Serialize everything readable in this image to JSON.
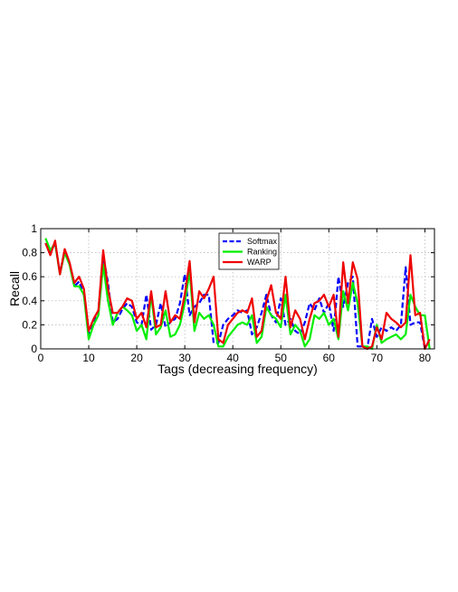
{
  "chart_data": {
    "type": "line",
    "title": "",
    "xlabel": "Tags (decreasing frequency)",
    "ylabel": "Recall",
    "xlim": [
      0,
      82
    ],
    "ylim": [
      0,
      1
    ],
    "xticks": [
      0,
      10,
      20,
      30,
      40,
      50,
      60,
      70,
      80
    ],
    "yticks": [
      0,
      0.2,
      0.4,
      0.6,
      0.8,
      1
    ],
    "xtick_labels": [
      "0",
      "10",
      "20",
      "30",
      "40",
      "50",
      "60",
      "70",
      "80"
    ],
    "ytick_labels": [
      "0",
      "0.2",
      "0.4",
      "0.6",
      "0.8",
      "1"
    ],
    "grid": true,
    "legend_position": "top-center",
    "series": [
      {
        "name": "Softmax",
        "color": "#0000ff",
        "style": "dashed",
        "x": [
          1,
          2,
          3,
          4,
          5,
          6,
          7,
          8,
          9,
          10,
          11,
          12,
          13,
          14,
          15,
          16,
          17,
          18,
          19,
          20,
          21,
          22,
          23,
          24,
          25,
          26,
          27,
          28,
          29,
          30,
          31,
          32,
          33,
          34,
          35,
          36,
          37,
          38,
          39,
          40,
          41,
          42,
          43,
          44,
          45,
          46,
          47,
          48,
          49,
          50,
          51,
          52,
          53,
          54,
          55,
          56,
          57,
          58,
          59,
          60,
          61,
          62,
          63,
          64,
          65,
          66,
          67,
          68,
          69,
          70,
          71,
          72,
          73,
          74,
          75,
          76,
          77,
          78,
          79,
          80,
          81
        ],
        "values": [
          0.88,
          0.8,
          0.88,
          0.63,
          0.82,
          0.72,
          0.52,
          0.56,
          0.45,
          0.12,
          0.23,
          0.3,
          0.78,
          0.55,
          0.22,
          0.25,
          0.33,
          0.38,
          0.35,
          0.22,
          0.2,
          0.45,
          0.16,
          0.2,
          0.38,
          0.18,
          0.22,
          0.25,
          0.38,
          0.62,
          0.28,
          0.35,
          0.38,
          0.45,
          0.45,
          0.05,
          0.05,
          0.2,
          0.25,
          0.28,
          0.32,
          0.3,
          0.32,
          0.12,
          0.18,
          0.3,
          0.45,
          0.28,
          0.22,
          0.42,
          0.2,
          0.25,
          0.15,
          0.12,
          0.22,
          0.38,
          0.32,
          0.42,
          0.3,
          0.38,
          0.15,
          0.6,
          0.35,
          0.55,
          0.6,
          0.02,
          0.02,
          0.0,
          0.25,
          0.1,
          0.18,
          0.15,
          0.18,
          0.15,
          0.2,
          0.68,
          0.2,
          0.22,
          0.22,
          0.0,
          0.08
        ]
      },
      {
        "name": "Ranking",
        "color": "#00ee00",
        "style": "solid",
        "x": [
          1,
          2,
          3,
          4,
          5,
          6,
          7,
          8,
          9,
          10,
          11,
          12,
          13,
          14,
          15,
          16,
          17,
          18,
          19,
          20,
          21,
          22,
          23,
          24,
          25,
          26,
          27,
          28,
          29,
          30,
          31,
          32,
          33,
          34,
          35,
          36,
          37,
          38,
          39,
          40,
          41,
          42,
          43,
          44,
          45,
          46,
          47,
          48,
          49,
          50,
          51,
          52,
          53,
          54,
          55,
          56,
          57,
          58,
          59,
          60,
          61,
          62,
          63,
          64,
          65,
          66,
          67,
          68,
          69,
          70,
          71,
          72,
          73,
          74,
          75,
          76,
          77,
          78,
          79,
          80,
          81
        ],
        "values": [
          0.92,
          0.82,
          0.88,
          0.62,
          0.8,
          0.7,
          0.52,
          0.52,
          0.45,
          0.08,
          0.2,
          0.28,
          0.7,
          0.4,
          0.2,
          0.3,
          0.35,
          0.32,
          0.28,
          0.15,
          0.2,
          0.08,
          0.45,
          0.12,
          0.18,
          0.32,
          0.1,
          0.12,
          0.2,
          0.38,
          0.65,
          0.15,
          0.3,
          0.25,
          0.28,
          0.2,
          0.02,
          0.02,
          0.1,
          0.15,
          0.2,
          0.22,
          0.2,
          0.28,
          0.05,
          0.1,
          0.35,
          0.28,
          0.25,
          0.18,
          0.45,
          0.12,
          0.2,
          0.15,
          0.02,
          0.08,
          0.28,
          0.25,
          0.3,
          0.2,
          0.25,
          0.08,
          0.48,
          0.32,
          0.55,
          0.38,
          0.02,
          0.02,
          0.0,
          0.2,
          0.05,
          0.08,
          0.1,
          0.12,
          0.08,
          0.12,
          0.45,
          0.35,
          0.28,
          0.28,
          0.0
        ]
      },
      {
        "name": "WARP",
        "color": "#ee0000",
        "style": "solid",
        "x": [
          1,
          2,
          3,
          4,
          5,
          6,
          7,
          8,
          9,
          10,
          11,
          12,
          13,
          14,
          15,
          16,
          17,
          18,
          19,
          20,
          21,
          22,
          23,
          24,
          25,
          26,
          27,
          28,
          29,
          30,
          31,
          32,
          33,
          34,
          35,
          36,
          37,
          38,
          39,
          40,
          41,
          42,
          43,
          44,
          45,
          46,
          47,
          48,
          49,
          50,
          51,
          52,
          53,
          54,
          55,
          56,
          57,
          58,
          59,
          60,
          61,
          62,
          63,
          64,
          65,
          66,
          67,
          68,
          69,
          70,
          71,
          72,
          73,
          74,
          75,
          76,
          77,
          78,
          79,
          80,
          81
        ],
        "values": [
          0.88,
          0.78,
          0.9,
          0.62,
          0.83,
          0.72,
          0.55,
          0.6,
          0.5,
          0.15,
          0.25,
          0.32,
          0.82,
          0.5,
          0.3,
          0.3,
          0.35,
          0.42,
          0.4,
          0.25,
          0.3,
          0.18,
          0.48,
          0.18,
          0.2,
          0.48,
          0.22,
          0.28,
          0.25,
          0.45,
          0.73,
          0.22,
          0.48,
          0.42,
          0.5,
          0.6,
          0.08,
          0.05,
          0.2,
          0.25,
          0.3,
          0.32,
          0.3,
          0.42,
          0.1,
          0.15,
          0.4,
          0.53,
          0.3,
          0.25,
          0.6,
          0.18,
          0.32,
          0.25,
          0.08,
          0.25,
          0.38,
          0.4,
          0.45,
          0.35,
          0.45,
          0.1,
          0.72,
          0.38,
          0.72,
          0.58,
          0.02,
          0.0,
          0.02,
          0.18,
          0.08,
          0.3,
          0.25,
          0.22,
          0.18,
          0.22,
          0.78,
          0.28,
          0.3,
          0.0,
          0.08
        ]
      }
    ]
  }
}
